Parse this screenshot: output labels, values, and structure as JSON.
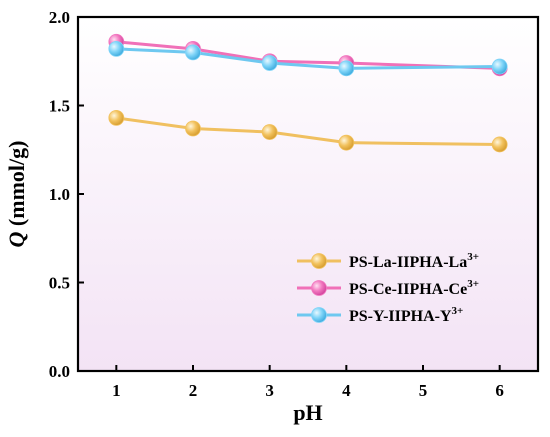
{
  "chart_data": {
    "type": "line",
    "xlabel": "pH",
    "ylabel_italic": "Q",
    "ylabel_rest": " (mmol/g)",
    "xlim": [
      0.5,
      6.5
    ],
    "ylim": [
      0.0,
      2.0
    ],
    "x_ticks": [
      "1",
      "2",
      "3",
      "4",
      "5",
      "6"
    ],
    "y_ticks": [
      "0.0",
      "0.5",
      "1.0",
      "1.5",
      "2.0"
    ],
    "legend_position": "lower-right",
    "series": [
      {
        "name_main": "PS-La-IIPHA-La",
        "name_sup": "3+",
        "color": "#f0c060",
        "marker": "#f2c25e",
        "x": [
          1,
          2,
          3,
          4,
          6
        ],
        "y": [
          1.43,
          1.37,
          1.35,
          1.29,
          1.28
        ]
      },
      {
        "name_main": "PS-Ce-IIPHA-Ce",
        "name_sup": "3+",
        "color": "#f070b8",
        "marker": "#f278c0",
        "x": [
          1,
          2,
          3,
          4,
          6
        ],
        "y": [
          1.86,
          1.82,
          1.75,
          1.74,
          1.71
        ]
      },
      {
        "name_main": "PS-Y-IIPHA-Y",
        "name_sup": "3+",
        "color": "#6ec8f0",
        "marker": "#7fd4f8",
        "x": [
          1,
          2,
          3,
          4,
          6
        ],
        "y": [
          1.82,
          1.8,
          1.74,
          1.71,
          1.72
        ]
      }
    ]
  }
}
